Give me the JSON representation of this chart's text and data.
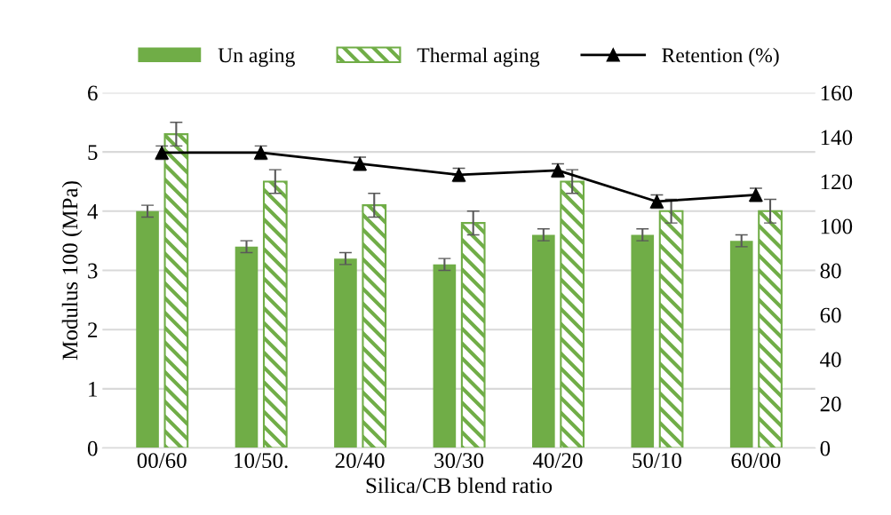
{
  "chart_data": {
    "type": "bar",
    "xlabel": "Silica/CB blend ratio",
    "ylabel": "Modulus 100 (MPa)",
    "categories": [
      "00/60",
      "10/50.",
      "20/40",
      "30/30",
      "40/20",
      "50/10",
      "60/00"
    ],
    "series": [
      {
        "name": "Un aging",
        "color": "#70ad47",
        "values": [
          4.0,
          3.4,
          3.2,
          3.1,
          3.6,
          3.6,
          3.5
        ],
        "errors": [
          0.1,
          0.1,
          0.1,
          0.1,
          0.1,
          0.1,
          0.1
        ]
      },
      {
        "name": "Thermal aging",
        "color": "#70ad47",
        "values": [
          5.3,
          4.5,
          4.1,
          3.8,
          4.5,
          4.0,
          4.0
        ],
        "errors": [
          0.2,
          0.2,
          0.2,
          0.2,
          0.2,
          0.2,
          0.2
        ]
      },
      {
        "name": "Retention (%)",
        "type": "line",
        "axis": "y2",
        "color": "#000000",
        "marker": "triangle",
        "values": [
          133,
          133,
          128,
          123,
          125,
          111,
          114
        ],
        "errors": [
          3,
          3,
          3,
          3,
          3,
          3,
          3
        ]
      }
    ],
    "ylim": [
      0,
      6
    ],
    "yticks": [
      0,
      1,
      2,
      3,
      4,
      5,
      6
    ],
    "y2lim": [
      0,
      160
    ],
    "y2ticks": [
      0,
      20,
      40,
      60,
      80,
      100,
      120,
      140,
      160
    ],
    "grid": "y",
    "legend": "top"
  }
}
